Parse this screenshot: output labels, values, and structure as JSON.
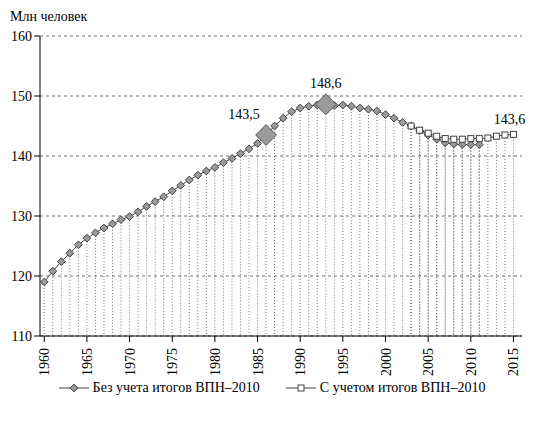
{
  "chart_data": {
    "type": "line",
    "y_label": "Млн человек",
    "x": [
      1960,
      1961,
      1962,
      1963,
      1964,
      1965,
      1966,
      1967,
      1968,
      1969,
      1970,
      1971,
      1972,
      1973,
      1974,
      1975,
      1976,
      1977,
      1978,
      1979,
      1980,
      1981,
      1982,
      1983,
      1984,
      1985,
      1986,
      1987,
      1988,
      1989,
      1990,
      1991,
      1992,
      1993,
      1994,
      1995,
      1996,
      1997,
      1998,
      1999,
      2000,
      2001,
      2002,
      2003,
      2004,
      2005,
      2006,
      2007,
      2008,
      2009,
      2010,
      2011,
      2012,
      2013,
      2014,
      2015
    ],
    "series": [
      {
        "name": "Без учета итогов ВПН–2010",
        "color": "#444444",
        "marker": "diamond",
        "values": [
          119.0,
          120.8,
          122.4,
          123.8,
          125.2,
          126.3,
          127.2,
          128.0,
          128.7,
          129.4,
          129.9,
          130.7,
          131.6,
          132.4,
          133.2,
          134.2,
          135.1,
          136.0,
          136.8,
          137.5,
          138.1,
          138.9,
          139.6,
          140.4,
          141.2,
          142.1,
          143.5,
          145.0,
          146.3,
          147.4,
          148.0,
          148.3,
          148.5,
          148.6,
          148.4,
          148.5,
          148.3,
          148.0,
          147.8,
          147.5,
          146.9,
          146.3,
          145.6,
          145.0,
          144.2,
          143.5,
          142.8,
          142.2,
          142.0,
          141.9,
          141.9,
          141.9,
          null,
          null,
          null,
          null
        ]
      },
      {
        "name": "С учетом итогов ВПН–2010",
        "color": "#444444",
        "marker": "square",
        "values": [
          null,
          null,
          null,
          null,
          null,
          null,
          null,
          null,
          null,
          null,
          null,
          null,
          null,
          null,
          null,
          null,
          null,
          null,
          null,
          null,
          null,
          null,
          null,
          null,
          null,
          null,
          null,
          null,
          null,
          null,
          null,
          null,
          null,
          null,
          null,
          null,
          null,
          null,
          null,
          null,
          null,
          null,
          null,
          145.0,
          144.3,
          143.8,
          143.3,
          142.9,
          142.8,
          142.8,
          142.9,
          142.9,
          143.0,
          143.3,
          143.5,
          143.6
        ]
      }
    ],
    "xlim": [
      1959.5,
      2016
    ],
    "xticks": [
      1960,
      1965,
      1970,
      1975,
      1980,
      1985,
      1990,
      1995,
      2000,
      2005,
      2010,
      2015
    ],
    "ylim": [
      110,
      160
    ],
    "yticks": [
      110,
      120,
      130,
      140,
      150,
      160
    ],
    "grid": true,
    "legend": "bottom",
    "annotations": [
      {
        "x": 1986,
        "y": 143.5,
        "text": "143,5",
        "marker": "diamond"
      },
      {
        "x": 1993,
        "y": 148.6,
        "text": "148,6",
        "marker": "diamond"
      },
      {
        "x": 2015,
        "y": 143.6,
        "text": "143,6"
      }
    ]
  }
}
